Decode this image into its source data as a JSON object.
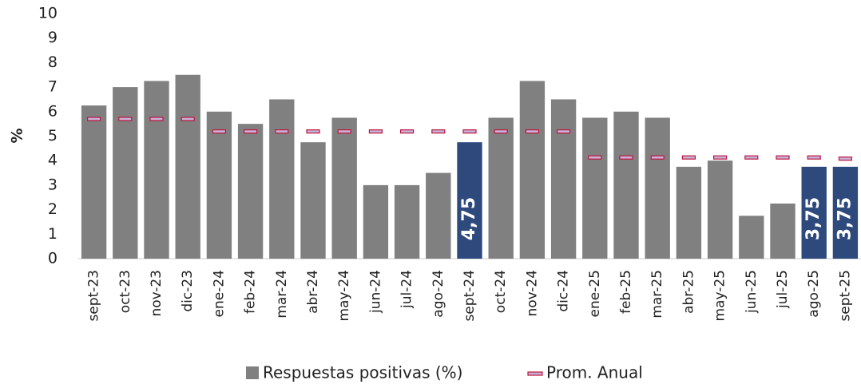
{
  "chart_data": {
    "type": "bar",
    "y_label": "%",
    "categories": [
      "sept-23",
      "oct-23",
      "nov-23",
      "dic-23",
      "ene-24",
      "feb-24",
      "mar-24",
      "abr-24",
      "may-24",
      "jun-24",
      "jul-24",
      "ago-24",
      "sept-24",
      "oct-24",
      "nov-24",
      "dic-24",
      "ene-25",
      "feb-25",
      "mar-25",
      "abr-25",
      "may-25",
      "jun-25",
      "jul-25",
      "ago-25",
      "sept-25"
    ],
    "series": [
      {
        "name": "Respuestas positivas (%)",
        "color": "#808080",
        "colors": [
          "#808080",
          "#808080",
          "#808080",
          "#808080",
          "#808080",
          "#808080",
          "#808080",
          "#808080",
          "#808080",
          "#808080",
          "#808080",
          "#808080",
          "#2e4a7d",
          "#808080",
          "#808080",
          "#808080",
          "#808080",
          "#808080",
          "#808080",
          "#808080",
          "#808080",
          "#808080",
          "#808080",
          "#2e4a7d",
          "#2e4a7d"
        ],
        "values": [
          6.25,
          7,
          7.25,
          7.5,
          6,
          5.5,
          6.5,
          4.75,
          5.75,
          3,
          3,
          3.5,
          4.75,
          5.75,
          7.25,
          6.5,
          5.75,
          6,
          5.75,
          3.75,
          4,
          1.75,
          2.25,
          3.75,
          3.75
        ],
        "value_labels": [
          null,
          null,
          null,
          null,
          null,
          null,
          null,
          null,
          null,
          null,
          null,
          null,
          "4,75",
          null,
          null,
          null,
          null,
          null,
          null,
          null,
          null,
          null,
          null,
          "3,75",
          "3,75"
        ]
      },
      {
        "name": "Prom. Anual",
        "color": "#c0143c",
        "values": [
          5.7,
          5.7,
          5.7,
          5.7,
          5.19,
          5.19,
          5.19,
          5.19,
          5.19,
          5.19,
          5.19,
          5.19,
          5.19,
          5.19,
          5.19,
          5.19,
          4.13,
          4.13,
          4.13,
          4.13,
          4.13,
          4.13,
          4.13,
          4.13,
          4.08
        ]
      }
    ],
    "ylim": [
      0,
      10
    ],
    "yticks": [
      0,
      1,
      2,
      3,
      4,
      5,
      6,
      7,
      8,
      9,
      10
    ],
    "grid": false
  }
}
